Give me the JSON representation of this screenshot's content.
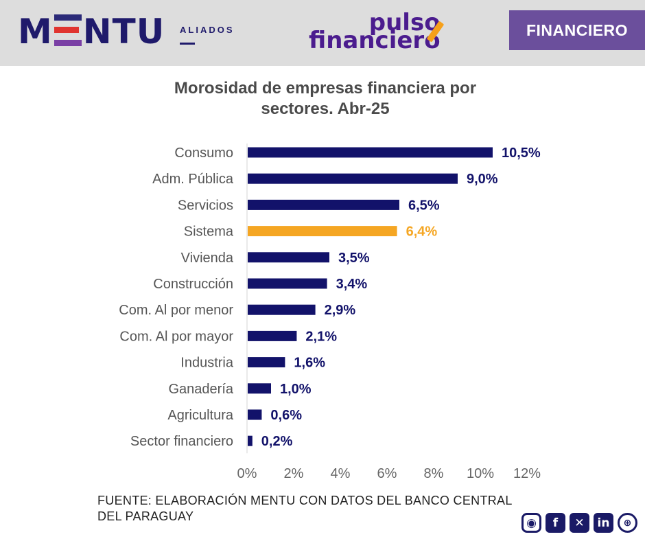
{
  "header": {
    "brand": "MENTU",
    "brand_sub": "ALIADOS",
    "partner_line1": "pulso",
    "partner_line2": "financiero",
    "tag": "FINANCIERO"
  },
  "chart_data": {
    "type": "bar",
    "orientation": "horizontal",
    "title_line1": "Morosidad de empresas financiera por",
    "title_line2": "sectores. Abr-25",
    "categories": [
      "Consumo",
      "Adm. Pública",
      "Servicios",
      "Sistema",
      "Vivienda",
      "Construcción",
      "Com. Al por menor",
      "Com. Al por mayor",
      "Industria",
      "Ganadería",
      "Agricultura",
      "Sector financiero"
    ],
    "values": [
      10.5,
      9.0,
      6.5,
      6.4,
      3.5,
      3.4,
      2.9,
      2.1,
      1.6,
      1.0,
      0.6,
      0.2
    ],
    "value_labels": [
      "10,5%",
      "9,0%",
      "6,5%",
      "6,4%",
      "3,5%",
      "3,4%",
      "2,9%",
      "2,1%",
      "1,6%",
      "1,0%",
      "0,6%",
      "0,2%"
    ],
    "highlight_category": "Sistema",
    "xlim": [
      0,
      12
    ],
    "x_ticks": [
      0,
      2,
      4,
      6,
      8,
      10,
      12
    ],
    "x_tick_labels": [
      "0%",
      "2%",
      "4%",
      "6%",
      "8%",
      "10%",
      "12%"
    ],
    "grid": false,
    "colors": {
      "bar": "#12126a",
      "highlight": "#f5a623",
      "label": "#12126a",
      "highlight_label": "#f5a623"
    }
  },
  "footer": {
    "source_line1": "FUENTE: ELABORACIÓN MENTU CON DATOS DEL BANCO CENTRAL",
    "source_line2": "DEL PARAGUAY",
    "social_icons": [
      "instagram-icon",
      "facebook-icon",
      "x-icon",
      "linkedin-icon",
      "globe-icon"
    ]
  }
}
